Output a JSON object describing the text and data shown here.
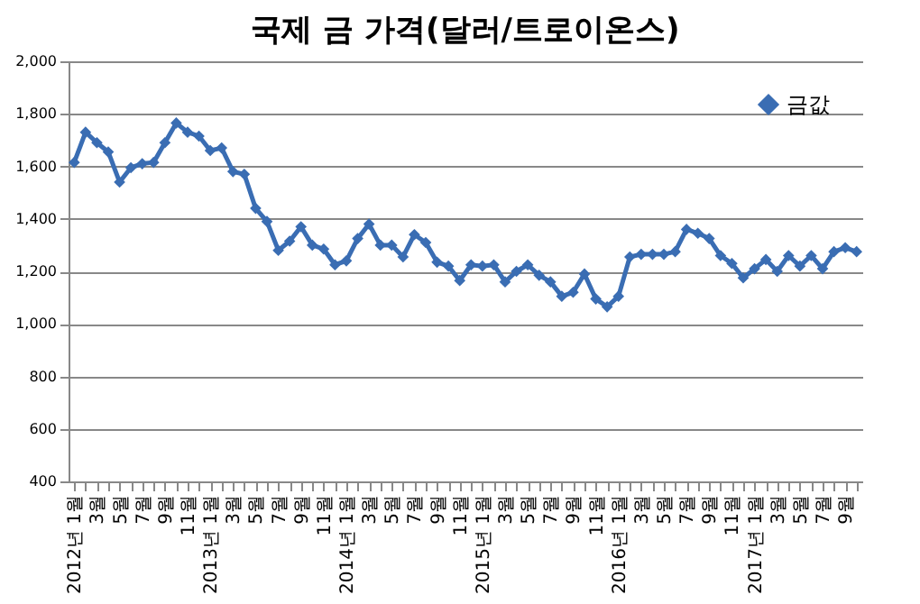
{
  "chart_data": {
    "type": "line",
    "title": "국제 금 가격(달러/트로이온스)",
    "categories": [
      "2012년 1월",
      null,
      "3월",
      null,
      "5월",
      null,
      "7월",
      null,
      "9월",
      null,
      "11월",
      null,
      "2013년 1월",
      null,
      "3월",
      null,
      "5월",
      null,
      "7월",
      null,
      "9월",
      null,
      "11월",
      null,
      "2014년 1월",
      null,
      "3월",
      null,
      "5월",
      null,
      "7월",
      null,
      "9월",
      null,
      "11월",
      null,
      "2015년 1월",
      null,
      "3월",
      null,
      "5월",
      null,
      "7월",
      null,
      "9월",
      null,
      "11월",
      null,
      "2016년 1월",
      null,
      "3월",
      null,
      "5월",
      null,
      "7월",
      null,
      "9월",
      null,
      "11월",
      null,
      "2017년 1월",
      null,
      "3월",
      null,
      "5월",
      null,
      "7월",
      null,
      "9월",
      null
    ],
    "series": [
      {
        "name": "금값",
        "color": "#3a6db3",
        "values": [
          1615,
          1730,
          1690,
          1655,
          1540,
          1595,
          1610,
          1615,
          1690,
          1765,
          1730,
          1715,
          1660,
          1670,
          1580,
          1570,
          1440,
          1390,
          1280,
          1315,
          1370,
          1300,
          1285,
          1225,
          1240,
          1325,
          1380,
          1300,
          1300,
          1255,
          1340,
          1310,
          1235,
          1220,
          1165,
          1225,
          1220,
          1225,
          1160,
          1200,
          1225,
          1185,
          1160,
          1105,
          1120,
          1190,
          1095,
          1065,
          1105,
          1255,
          1265,
          1265,
          1265,
          1275,
          1360,
          1345,
          1325,
          1260,
          1230,
          1175,
          1210,
          1245,
          1200,
          1260,
          1220,
          1260,
          1210,
          1275,
          1290,
          1275
        ]
      }
    ],
    "ylim": [
      400,
      2000
    ],
    "yticks": [
      {
        "value": 400,
        "label": "400"
      },
      {
        "value": 600,
        "label": "600"
      },
      {
        "value": 800,
        "label": "800"
      },
      {
        "value": 1000,
        "label": "1,000"
      },
      {
        "value": 1200,
        "label": "1,200"
      },
      {
        "value": 1400,
        "label": "1,400"
      },
      {
        "value": 1600,
        "label": "1,600"
      },
      {
        "value": 1800,
        "label": "1,800"
      },
      {
        "value": 2000,
        "label": "2,000"
      }
    ],
    "grid": "y",
    "legend": "top right",
    "marker": "diamond",
    "line_style": "solid"
  }
}
